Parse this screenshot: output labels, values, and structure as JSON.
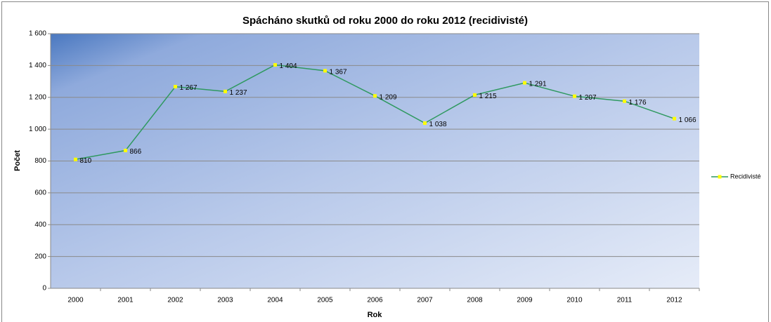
{
  "chart_data": {
    "type": "line",
    "title": "Spácháno skutků od roku 2000 do roku 2012 (recidivisté)",
    "x_label": "Rok",
    "y_label": "Počet",
    "categories": [
      "2000",
      "2001",
      "2002",
      "2003",
      "2004",
      "2005",
      "2006",
      "2007",
      "2008",
      "2009",
      "2010",
      "2011",
      "2012"
    ],
    "series": [
      {
        "name": "Recidivisté",
        "color": "#2f9960",
        "marker_color": "#ffff00",
        "values": [
          810,
          866,
          1267,
          1237,
          1404,
          1367,
          1209,
          1038,
          1215,
          1291,
          1207,
          1176,
          1066
        ],
        "value_labels": [
          "810",
          "866",
          "1 267",
          "1 237",
          "1 404",
          "1 367",
          "1 209",
          "1 038",
          "1 215",
          "1 291",
          "1 207",
          "1 176",
          "1 066"
        ]
      }
    ],
    "ylim": [
      0,
      1600
    ],
    "yticks": [
      0,
      200,
      400,
      600,
      800,
      {
        "value": 1000,
        "label": "1 000"
      },
      {
        "value": 1200,
        "label": "1 200"
      },
      {
        "value": 1400,
        "label": "1 400"
      },
      {
        "value": 1600,
        "label": "1 600"
      }
    ],
    "grid": true,
    "legend": "right"
  }
}
